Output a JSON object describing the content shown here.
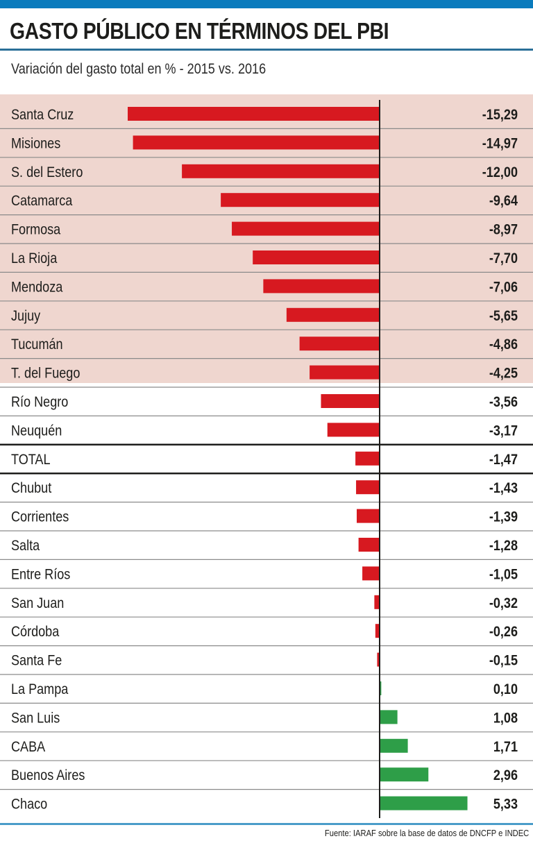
{
  "header": {
    "title": "GASTO PÚBLICO EN TÉRMINOS DEL PBI",
    "subtitle": "Variación del gasto total en % - 2015 vs. 2016"
  },
  "footer": {
    "source": "Fuente: IARAF sobre la base de datos de DNCFP e INDEC"
  },
  "colors": {
    "top_bar": "#0a7bbd",
    "highlight_band": "#efd6cf",
    "negative_bar": "#d71920",
    "positive_bar": "#2e9e48",
    "axis": "#1d1d1b",
    "row_divider": "#8a8a8a"
  },
  "chart_data": {
    "type": "bar",
    "orientation": "horizontal",
    "title": "GASTO PÚBLICO EN TÉRMINOS DEL PBI",
    "subtitle": "Variación del gasto total en % - 2015 vs. 2016",
    "xlabel": "",
    "ylabel": "",
    "xlim": [
      -15.29,
      5.33
    ],
    "grid": false,
    "legend": "none",
    "highlighted_categories_count": 10,
    "categories": [
      "Santa Cruz",
      "Misiones",
      "S. del Estero",
      "Catamarca",
      "Formosa",
      "La Rioja",
      "Mendoza",
      "Jujuy",
      "Tucumán",
      "T. del Fuego",
      "Río Negro",
      "Neuquén",
      "TOTAL",
      "Chubut",
      "Corrientes",
      "Salta",
      "Entre Ríos",
      "San Juan",
      "Córdoba",
      "Santa Fe",
      "La Pampa",
      "San Luis",
      "CABA",
      "Buenos Aires",
      "Chaco"
    ],
    "values": [
      -15.29,
      -14.97,
      -12.0,
      -9.64,
      -8.97,
      -7.7,
      -7.06,
      -5.65,
      -4.86,
      -4.25,
      -3.56,
      -3.17,
      -1.47,
      -1.43,
      -1.39,
      -1.28,
      -1.05,
      -0.32,
      -0.26,
      -0.15,
      0.1,
      1.08,
      1.71,
      2.96,
      5.33
    ],
    "value_labels": [
      "-15,29",
      "-14,97",
      "-12,00",
      "-9,64",
      "-8,97",
      "-7,70",
      "-7,06",
      "-5,65",
      "-4,86",
      "-4,25",
      "-3,56",
      "-3,17",
      "-1,47",
      "-1,43",
      "-1,39",
      "-1,28",
      "-1,05",
      "-0,32",
      "-0,26",
      "-0,15",
      "0,10",
      "1,08",
      "1,71",
      "2,96",
      "5,33"
    ]
  }
}
